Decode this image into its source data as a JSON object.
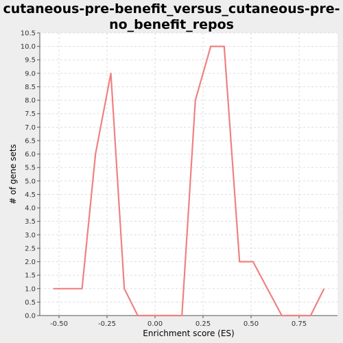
{
  "chart_data": {
    "type": "line",
    "title_lines": [
      "cutaneous-pre-benefit_versus_cutaneous-pre-",
      "no_benefit_repos"
    ],
    "xlabel": "Enrichment score (ES)",
    "ylabel": "# of gene sets",
    "xlim": [
      -0.6,
      0.95
    ],
    "ylim": [
      0,
      10.5
    ],
    "x_ticks": [
      -0.5,
      -0.25,
      0.0,
      0.25,
      0.5,
      0.75
    ],
    "x_tick_labels": [
      "-0.50",
      "-0.25",
      "0.00",
      "0.25",
      "0.50",
      "0.75"
    ],
    "y_ticks": [
      0.0,
      0.5,
      1.0,
      1.5,
      2.0,
      2.5,
      3.0,
      3.5,
      4.0,
      4.5,
      5.0,
      5.5,
      6.0,
      6.5,
      7.0,
      7.5,
      8.0,
      8.5,
      9.0,
      9.5,
      10.0,
      10.5
    ],
    "y_tick_labels": [
      "0.0",
      "0.5",
      "1.0",
      "1.5",
      "2.0",
      "2.5",
      "3.0",
      "3.5",
      "4.0",
      "4.5",
      "5.0",
      "5.5",
      "6.0",
      "6.5",
      "7.0",
      "7.5",
      "8.0",
      "8.5",
      "9.0",
      "9.5",
      "10.0",
      "10.5"
    ],
    "grid": true,
    "series": [
      {
        "color": "#f08080",
        "x": [
          -0.53,
          -0.38,
          -0.31,
          -0.23,
          -0.16,
          -0.09,
          0.14,
          0.21,
          0.29,
          0.36,
          0.44,
          0.51,
          0.66,
          0.81,
          0.88
        ],
        "y": [
          1,
          1,
          6,
          9,
          1,
          0,
          0,
          8,
          10,
          10,
          2,
          2,
          0,
          0,
          1
        ]
      }
    ]
  }
}
